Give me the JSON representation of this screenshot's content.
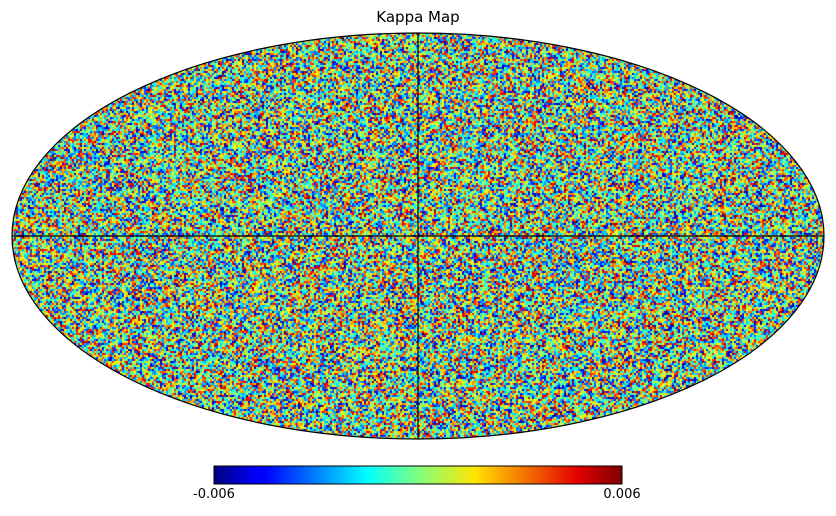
{
  "chart_data": {
    "type": "heatmap",
    "projection": "mollweide",
    "title": "Kappa Map",
    "quantity": "kappa",
    "colormap": "jet",
    "colorbar": {
      "orientation": "horizontal",
      "placement": "bottom",
      "min": -0.006,
      "max": 0.006,
      "min_label": "-0.006",
      "max_label": "0.006"
    },
    "graticule": {
      "equator": true,
      "central_meridian": true
    },
    "field": "random small-scale noise spanning the full color range"
  }
}
